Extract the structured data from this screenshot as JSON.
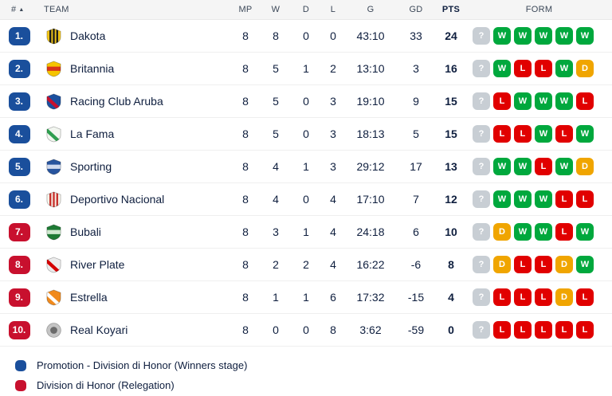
{
  "table": {
    "headers": {
      "rank": "#",
      "team": "TEAM",
      "mp": "MP",
      "w": "W",
      "d": "D",
      "l": "L",
      "g": "G",
      "gd": "GD",
      "pts": "PTS",
      "form": "FORM"
    },
    "sort_icon": "ascending-triangle"
  },
  "teams": [
    {
      "rank": "1.",
      "tier": "promotion",
      "name": "Dakota",
      "mp": "8",
      "w": "8",
      "d": "0",
      "l": "0",
      "g": "43:10",
      "gd": "33",
      "pts": "24",
      "form": [
        "?",
        "W",
        "W",
        "W",
        "W",
        "W"
      ],
      "logo": {
        "primary": "#f0c419",
        "secondary": "#1d1d1b",
        "style": "stripes"
      }
    },
    {
      "rank": "2.",
      "tier": "promotion",
      "name": "Britannia",
      "mp": "8",
      "w": "5",
      "d": "1",
      "l": "2",
      "g": "13:10",
      "gd": "3",
      "pts": "16",
      "form": [
        "?",
        "W",
        "L",
        "L",
        "W",
        "D"
      ],
      "logo": {
        "primary": "#f5c400",
        "secondary": "#d8341c",
        "style": "band"
      }
    },
    {
      "rank": "3.",
      "tier": "promotion",
      "name": "Racing Club Aruba",
      "mp": "8",
      "w": "5",
      "d": "0",
      "l": "3",
      "g": "19:10",
      "gd": "9",
      "pts": "15",
      "form": [
        "?",
        "L",
        "W",
        "W",
        "W",
        "L"
      ],
      "logo": {
        "primary": "#1b4f9e",
        "secondary": "#c8102e",
        "style": "sash"
      }
    },
    {
      "rank": "4.",
      "tier": "promotion",
      "name": "La Fama",
      "mp": "8",
      "w": "5",
      "d": "0",
      "l": "3",
      "g": "18:13",
      "gd": "5",
      "pts": "15",
      "form": [
        "?",
        "L",
        "L",
        "W",
        "L",
        "W"
      ],
      "logo": {
        "primary": "#f2f6f0",
        "secondary": "#2e9e4f",
        "style": "sash"
      }
    },
    {
      "rank": "5.",
      "tier": "promotion",
      "name": "Sporting",
      "mp": "8",
      "w": "4",
      "d": "1",
      "l": "3",
      "g": "29:12",
      "gd": "17",
      "pts": "13",
      "form": [
        "?",
        "W",
        "W",
        "L",
        "W",
        "D"
      ],
      "logo": {
        "primary": "#27549e",
        "secondary": "#cfd9ee",
        "style": "band"
      }
    },
    {
      "rank": "6.",
      "tier": "promotion",
      "name": "Deportivo Nacional",
      "mp": "8",
      "w": "4",
      "d": "0",
      "l": "4",
      "g": "17:10",
      "gd": "7",
      "pts": "12",
      "form": [
        "?",
        "W",
        "W",
        "W",
        "L",
        "L"
      ],
      "logo": {
        "primary": "#f6f3ea",
        "secondary": "#c8322e",
        "style": "stripes"
      }
    },
    {
      "rank": "7.",
      "tier": "relegation",
      "name": "Bubali",
      "mp": "8",
      "w": "3",
      "d": "1",
      "l": "4",
      "g": "24:18",
      "gd": "6",
      "pts": "10",
      "form": [
        "?",
        "D",
        "W",
        "W",
        "L",
        "W"
      ],
      "logo": {
        "primary": "#1e7a34",
        "secondary": "#cfe8cf",
        "style": "band"
      }
    },
    {
      "rank": "8.",
      "tier": "relegation",
      "name": "River Plate",
      "mp": "8",
      "w": "2",
      "d": "2",
      "l": "4",
      "g": "16:22",
      "gd": "-6",
      "pts": "8",
      "form": [
        "?",
        "D",
        "L",
        "L",
        "D",
        "W"
      ],
      "logo": {
        "primary": "#ececec",
        "secondary": "#d40000",
        "style": "sash"
      }
    },
    {
      "rank": "9.",
      "tier": "relegation",
      "name": "Estrella",
      "mp": "8",
      "w": "1",
      "d": "1",
      "l": "6",
      "g": "17:32",
      "gd": "-15",
      "pts": "4",
      "form": [
        "?",
        "L",
        "L",
        "L",
        "D",
        "L"
      ],
      "logo": {
        "primary": "#f08a1d",
        "secondary": "#ffffff",
        "style": "sash"
      }
    },
    {
      "rank": "10.",
      "tier": "relegation",
      "name": "Real Koyari",
      "mp": "8",
      "w": "0",
      "d": "0",
      "l": "8",
      "g": "3:62",
      "gd": "-59",
      "pts": "0",
      "form": [
        "?",
        "L",
        "L",
        "L",
        "L",
        "L"
      ],
      "logo": {
        "primary": "#c4c4c4",
        "secondary": "#6b6b6b",
        "style": "circle"
      }
    }
  ],
  "legend": [
    {
      "label": "Promotion - Division di Honor (Winners stage)",
      "color": "#1a4f9c"
    },
    {
      "label": "Division di Honor (Relegation)",
      "color": "#c8102e"
    }
  ],
  "colors": {
    "rank": {
      "promotion": "#1a4f9c",
      "relegation": "#c8102e"
    },
    "form": {
      "W": "#00a83d",
      "L": "#e10000",
      "D": "#f0a500",
      "?": "#c8ced4"
    },
    "header_bg": "#f5f5f5",
    "text": "#0e1e3e"
  }
}
